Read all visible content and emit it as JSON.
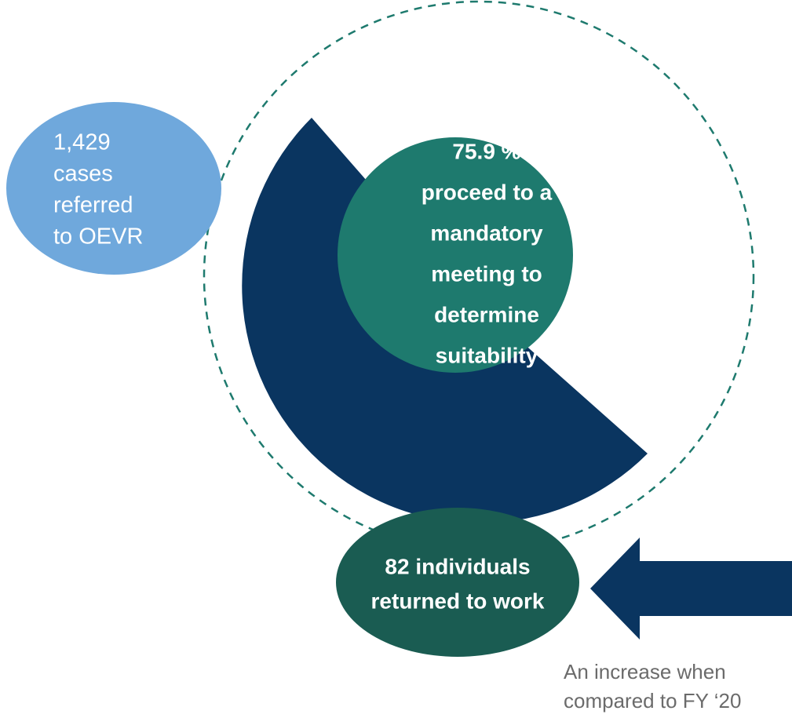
{
  "referred": {
    "lines": [
      "1,429",
      "cases",
      "referred",
      "to OEVR"
    ]
  },
  "proceed": {
    "lines": [
      "75.9 %",
      "proceed to a",
      "mandatory",
      "meeting to",
      "determine",
      "suitability"
    ]
  },
  "returned": {
    "lines": [
      "82 individuals",
      "returned to work"
    ]
  },
  "note": {
    "lines": [
      "An increase when",
      "compared to FY ‘20"
    ]
  }
}
